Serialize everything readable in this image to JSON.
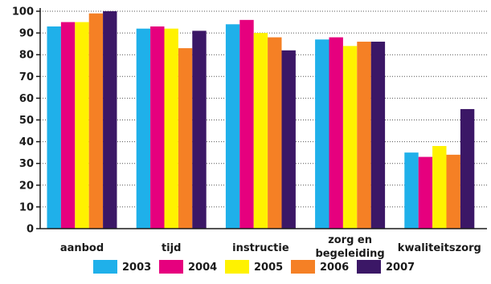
{
  "chart_data": {
    "type": "bar",
    "title": "",
    "xlabel": "",
    "ylabel": "",
    "ylim": [
      0,
      100
    ],
    "yticks": [
      0,
      10,
      20,
      30,
      40,
      50,
      60,
      70,
      80,
      90,
      100
    ],
    "grid": "horizontal dotted",
    "legend_position": "bottom",
    "categories": [
      [
        "aanbod"
      ],
      [
        "tijd"
      ],
      [
        "instructie"
      ],
      [
        "zorg en",
        "begeleiding"
      ],
      [
        "kwaliteitszorg"
      ]
    ],
    "series": [
      {
        "name": "2003",
        "color": "#1fb0ea",
        "values": [
          93,
          92,
          94,
          87,
          35
        ]
      },
      {
        "name": "2004",
        "color": "#e6007e",
        "values": [
          95,
          93,
          96,
          88,
          33
        ]
      },
      {
        "name": "2005",
        "color": "#fff200",
        "values": [
          95,
          92,
          90,
          84,
          38
        ]
      },
      {
        "name": "2006",
        "color": "#f58025",
        "values": [
          99,
          83,
          88,
          86,
          34
        ]
      },
      {
        "name": "2007",
        "color": "#3b1766",
        "values": [
          100,
          91,
          82,
          86,
          55
        ]
      }
    ]
  }
}
